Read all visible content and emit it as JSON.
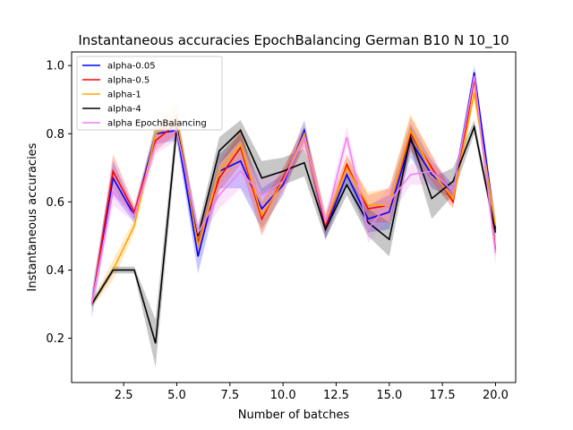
{
  "chart_data": {
    "type": "line",
    "title": "Instantaneous accuracies EpochBalancing German B10 N 10_10",
    "xlabel": "Number of batches",
    "ylabel": "Instantaneous accuracies",
    "xlim": [
      0.05,
      20.95
    ],
    "ylim": [
      0.07,
      1.04
    ],
    "xticks": [
      2.5,
      5.0,
      7.5,
      10.0,
      12.5,
      15.0,
      17.5,
      20.0
    ],
    "yticks": [
      0.2,
      0.4,
      0.6,
      0.8,
      1.0
    ],
    "xtick_labels": [
      "2.5",
      "5.0",
      "7.5",
      "10.0",
      "12.5",
      "15.0",
      "17.5",
      "20.0"
    ],
    "ytick_labels": [
      "0.2",
      "0.4",
      "0.6",
      "0.8",
      "1.0"
    ],
    "legend_position": "top-left",
    "grid": false,
    "x": [
      1,
      2,
      3,
      4,
      5,
      6,
      7,
      8,
      9,
      10,
      11,
      12,
      13,
      14,
      15,
      16,
      17,
      18,
      19,
      20
    ],
    "series": [
      {
        "name": "alpha-0.05",
        "color": "#0000ff",
        "values": [
          0.3,
          0.67,
          0.56,
          0.8,
          0.81,
          0.44,
          0.69,
          0.72,
          0.58,
          0.65,
          0.81,
          0.52,
          0.68,
          0.55,
          0.57,
          0.78,
          0.68,
          0.63,
          0.98,
          0.52
        ],
        "band": [
          0.04,
          0.05,
          0.02,
          0.03,
          0.03,
          0.05,
          0.05,
          0.08,
          0.06,
          0.03,
          0.03,
          0.03,
          0.03,
          0.04,
          0.05,
          0.05,
          0.04,
          0.02,
          0.02,
          0.03
        ]
      },
      {
        "name": "alpha-0.5",
        "color": "#ff0000",
        "values": [
          0.3,
          0.69,
          0.57,
          0.78,
          0.83,
          0.48,
          0.67,
          0.76,
          0.55,
          0.67,
          0.79,
          0.53,
          0.71,
          0.58,
          0.59,
          0.8,
          0.7,
          0.6,
          0.96,
          0.46
        ],
        "band": [
          0.01,
          0.05,
          0.02,
          0.03,
          0.03,
          0.03,
          0.04,
          0.05,
          0.05,
          0.03,
          0.03,
          0.03,
          0.03,
          0.04,
          0.05,
          0.05,
          0.04,
          0.02,
          0.02,
          0.03
        ]
      },
      {
        "name": "alpha-1",
        "color": "#ffa500",
        "values": [
          0.3,
          0.4,
          0.53,
          0.8,
          0.84,
          0.47,
          0.69,
          0.77,
          0.56,
          0.66,
          0.8,
          0.54,
          0.7,
          0.59,
          0.59,
          0.81,
          0.69,
          0.61,
          0.92,
          0.53
        ],
        "band": [
          0.01,
          0.03,
          0.02,
          0.03,
          0.05,
          0.03,
          0.04,
          0.05,
          0.05,
          0.03,
          0.03,
          0.03,
          0.03,
          0.04,
          0.05,
          0.05,
          0.04,
          0.02,
          0.02,
          0.03
        ]
      },
      {
        "name": "alpha-4",
        "color": "#000000",
        "values": [
          0.3,
          0.4,
          0.4,
          0.185,
          0.82,
          0.5,
          0.75,
          0.81,
          0.67,
          0.69,
          0.715,
          0.52,
          0.65,
          0.54,
          0.49,
          0.79,
          0.61,
          0.66,
          0.82,
          0.51
        ],
        "band": [
          0.01,
          0.01,
          0.01,
          0.07,
          0.04,
          0.03,
          0.04,
          0.03,
          0.05,
          0.04,
          0.04,
          0.03,
          0.03,
          0.04,
          0.05,
          0.03,
          0.06,
          0.04,
          0.02,
          0.02
        ]
      },
      {
        "name": "alpha EpochBalancing",
        "color": "#ee82ee",
        "values": [
          0.3,
          0.63,
          0.56,
          0.77,
          0.81,
          0.51,
          0.62,
          0.69,
          0.62,
          0.66,
          0.79,
          0.54,
          0.79,
          0.52,
          0.6,
          0.68,
          0.69,
          0.63,
          0.97,
          0.45
        ],
        "band": [
          0.01,
          0.04,
          0.02,
          0.03,
          0.03,
          0.03,
          0.04,
          0.05,
          0.05,
          0.03,
          0.03,
          0.03,
          0.03,
          0.04,
          0.05,
          0.03,
          0.04,
          0.02,
          0.02,
          0.04
        ]
      }
    ]
  }
}
